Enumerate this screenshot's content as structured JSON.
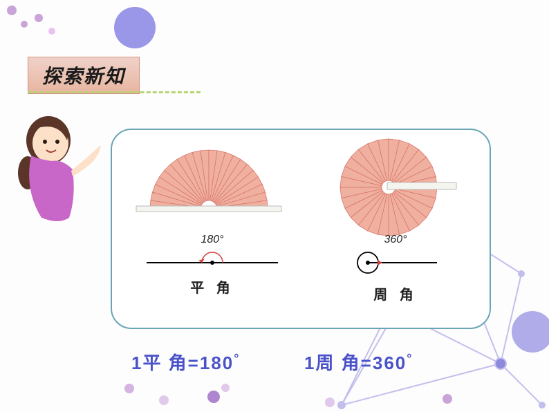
{
  "title": "探索新知",
  "left": {
    "fan_color": "#f0b0a0",
    "fan_stroke": "#d8776a",
    "degrees_label": "180°",
    "name": "平 角",
    "statement_prefix": "1平 角=180",
    "statement_suffix": "°"
  },
  "right": {
    "fan_color": "#f0b0a0",
    "fan_stroke": "#d8776a",
    "degrees_label": "360°",
    "name": "周 角",
    "statement_prefix": "1周 角=360",
    "statement_suffix": "°"
  },
  "colors": {
    "accent_purple": "#9a96e8",
    "accent_blue": "#4a52c9",
    "dash_green": "#b8d470",
    "box_border": "#6aa5b5",
    "title_bg_top": "#f0d2c9",
    "title_bg_bot": "#e8b5a0"
  }
}
